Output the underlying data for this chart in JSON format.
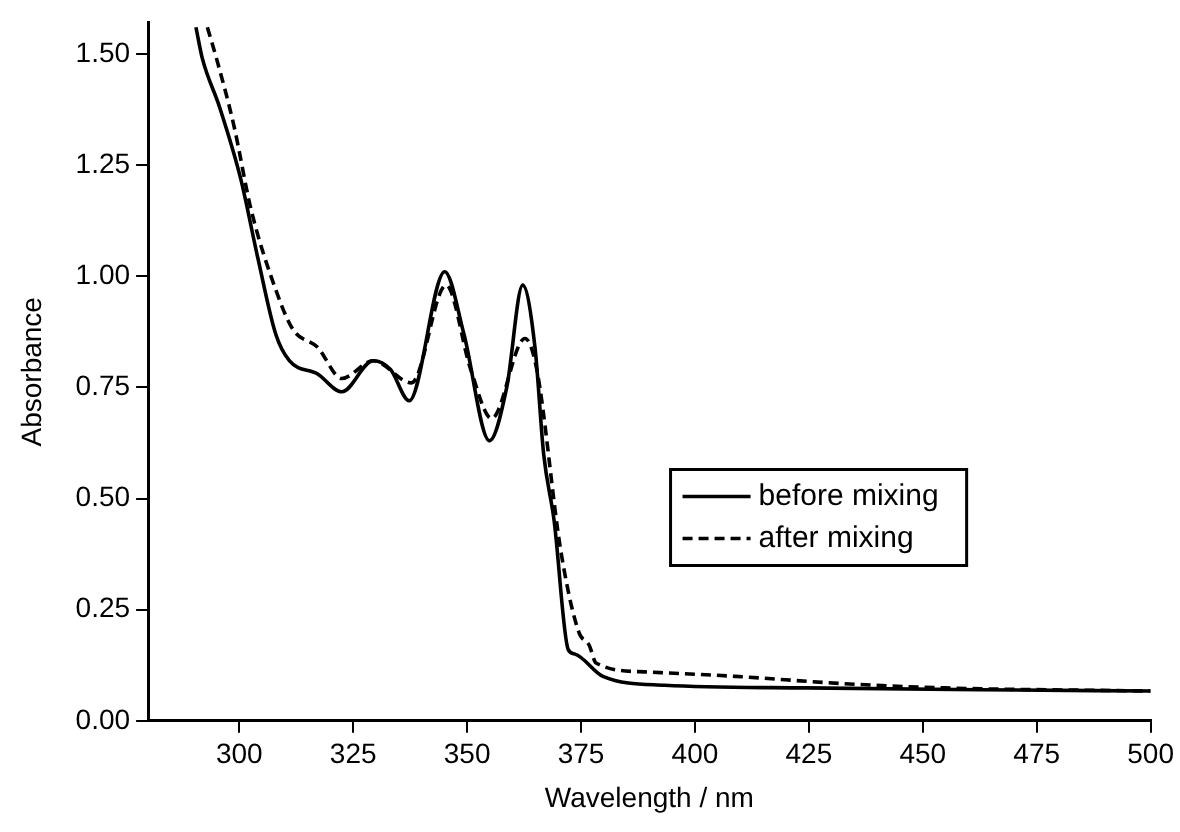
{
  "chart_data": {
    "type": "line",
    "xlabel": "Wavelength / nm",
    "ylabel": "Absorbance",
    "xlim": [
      280,
      500
    ],
    "ylim": [
      0,
      1.57
    ],
    "xticks": [
      300,
      325,
      350,
      375,
      400,
      425,
      450,
      475,
      500
    ],
    "yticks": [
      {
        "value": 0,
        "label": "0.00"
      },
      {
        "value": 0.25,
        "label": "0.25"
      },
      {
        "value": 0.5,
        "label": "0.50"
      },
      {
        "value": 0.75,
        "label": "0.75"
      },
      {
        "value": 1,
        "label": "1.00"
      },
      {
        "value": 1.25,
        "label": "1.25"
      },
      {
        "value": 1.5,
        "label": "1.50"
      }
    ],
    "grid": false,
    "legend": "right",
    "marker": "none",
    "series": [
      {
        "name": "before mixing",
        "color": "#000000",
        "line_style": "solid",
        "x": [
          290.5,
          291.9,
          295.7,
          300.3,
          304.1,
          308,
          311,
          317.2,
          322.5,
          329.4,
          333.2,
          337.3,
          345.1,
          349.3,
          354.9,
          358.7,
          362.2,
          364.9,
          366.8,
          369.1,
          372.2,
          373.7,
          379.8,
          393.4,
          424.2,
          462.4,
          500
        ],
        "values": [
          1.56,
          1.49,
          1.38,
          1.22,
          1.04,
          0.87,
          0.81,
          0.78,
          0.74,
          0.81,
          0.79,
          0.72,
          1.01,
          0.87,
          0.63,
          0.75,
          0.98,
          0.84,
          0.6,
          0.45,
          0.16,
          0.15,
          0.1,
          0.08,
          0.074,
          0.07,
          0.067
        ]
      },
      {
        "name": "after mixing",
        "color": "#000000",
        "line_style": "dashed",
        "x": [
          293,
          295,
          298.8,
          302.6,
          308,
          311.8,
          317.2,
          322.5,
          329.4,
          337.8,
          345.4,
          350.8,
          355.4,
          362.7,
          365.3,
          370.6,
          374.5,
          376.8,
          378.3,
          389,
          408.9,
          431.8,
          454.8,
          500
        ],
        "values": [
          1.56,
          1.49,
          1.34,
          1.15,
          0.97,
          0.88,
          0.84,
          0.77,
          0.81,
          0.76,
          0.98,
          0.79,
          0.68,
          0.86,
          0.79,
          0.38,
          0.2,
          0.17,
          0.13,
          0.11,
          0.1,
          0.084,
          0.074,
          0.067
        ]
      }
    ]
  }
}
